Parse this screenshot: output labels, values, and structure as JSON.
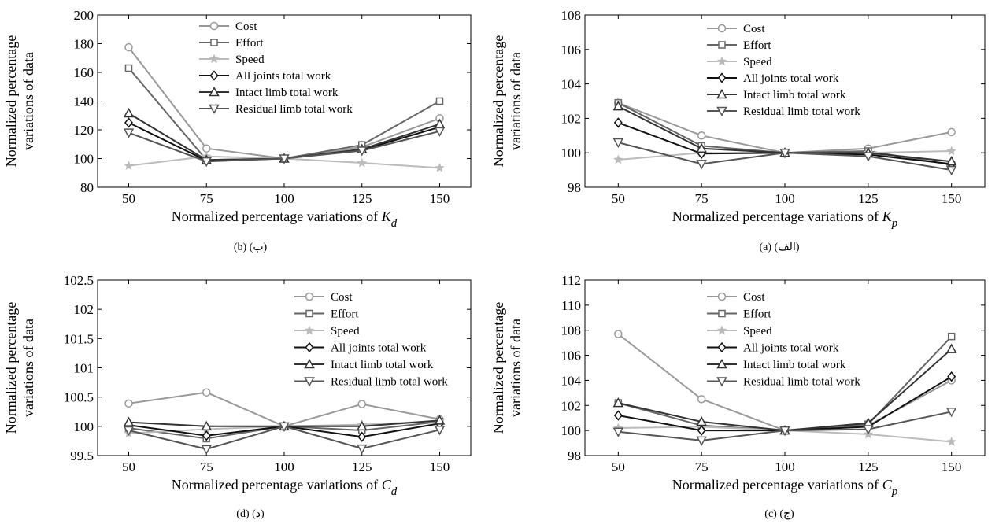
{
  "chart_data": [
    {
      "type": "line",
      "panel": "b",
      "caption": "(b)  (ب)",
      "xlabel": "Normalized percentage variations of K",
      "xlabel_sub": "d",
      "ylabel": [
        "Normalized percentage",
        "variations of data"
      ],
      "x": [
        50,
        75,
        100,
        125,
        150
      ],
      "xlim": [
        40,
        160
      ],
      "ylim": [
        80,
        200
      ],
      "yticks": [
        80,
        100,
        120,
        140,
        160,
        180,
        200
      ],
      "ytick_labels": [
        "80",
        "100",
        "120",
        "140",
        "160",
        "180",
        "200"
      ],
      "legend_position": "top-center",
      "series": [
        {
          "name": "Cost",
          "color": "#999999",
          "marker": "circle",
          "values": [
            177.5,
            107,
            100,
            108,
            128
          ]
        },
        {
          "name": "Effort",
          "color": "#666666",
          "marker": "square",
          "values": [
            163,
            99,
            100,
            109.5,
            140
          ]
        },
        {
          "name": "Speed",
          "color": "#bbbbbb",
          "marker": "star",
          "values": [
            95,
            101.5,
            100,
            97,
            93.5
          ]
        },
        {
          "name": "All joints total work",
          "color": "#111111",
          "marker": "diamond",
          "values": [
            125,
            98.5,
            100,
            106,
            122
          ]
        },
        {
          "name": "Intact limb total work",
          "color": "#333333",
          "marker": "triangle-up",
          "values": [
            131.5,
            99,
            100,
            106.5,
            124
          ]
        },
        {
          "name": "Residual limb total work",
          "color": "#555555",
          "marker": "triangle-down",
          "values": [
            118,
            98,
            100,
            105.5,
            119
          ]
        }
      ]
    },
    {
      "type": "line",
      "panel": "a",
      "caption": "(a)  (الف)",
      "xlabel": "Normalized percentage variations of K",
      "xlabel_sub": "p",
      "ylabel": [
        "Normalized percentage",
        "variations of data"
      ],
      "x": [
        50,
        75,
        100,
        125,
        150
      ],
      "xlim": [
        40,
        160
      ],
      "ylim": [
        98,
        108
      ],
      "yticks": [
        98,
        100,
        102,
        104,
        106,
        108
      ],
      "ytick_labels": [
        "98",
        "100",
        "102",
        "104",
        "106",
        "108"
      ],
      "legend_position": "top-center",
      "series": [
        {
          "name": "Cost",
          "color": "#999999",
          "marker": "circle",
          "values": [
            102.9,
            101.0,
            100,
            100.25,
            101.2
          ]
        },
        {
          "name": "Effort",
          "color": "#666666",
          "marker": "square",
          "values": [
            102.9,
            100.4,
            100,
            100.1,
            99.3
          ]
        },
        {
          "name": "Speed",
          "color": "#bbbbbb",
          "marker": "star",
          "values": [
            99.6,
            100.0,
            100,
            100.0,
            100.1
          ]
        },
        {
          "name": "All joints total work",
          "color": "#111111",
          "marker": "diamond",
          "values": [
            101.75,
            99.95,
            100,
            99.9,
            99.35
          ]
        },
        {
          "name": "Intact limb total work",
          "color": "#333333",
          "marker": "triangle-up",
          "values": [
            102.7,
            100.25,
            100,
            100.0,
            99.5
          ]
        },
        {
          "name": "Residual limb total work",
          "color": "#555555",
          "marker": "triangle-down",
          "values": [
            100.6,
            99.35,
            100,
            99.8,
            99.0
          ]
        }
      ]
    },
    {
      "type": "line",
      "panel": "d",
      "caption": "(d)  (د)",
      "xlabel": "Normalized percentage variations of C",
      "xlabel_sub": "d",
      "ylabel": [
        "Normalized percentage",
        "variations of data"
      ],
      "x": [
        50,
        75,
        100,
        125,
        150
      ],
      "xlim": [
        40,
        160
      ],
      "ylim": [
        99.5,
        102.5
      ],
      "yticks": [
        99.5,
        100,
        100.5,
        101,
        101.5,
        102,
        102.5
      ],
      "ytick_labels": [
        "99.5",
        "100",
        "100.5",
        "101",
        "101.5",
        "102",
        "102.5"
      ],
      "legend_position": "top-right",
      "series": [
        {
          "name": "Cost",
          "color": "#999999",
          "marker": "circle",
          "values": [
            100.39,
            100.58,
            100,
            100.38,
            100.12
          ]
        },
        {
          "name": "Effort",
          "color": "#666666",
          "marker": "square",
          "values": [
            99.97,
            99.79,
            100,
            99.93,
            100.08
          ]
        },
        {
          "name": "Speed",
          "color": "#bbbbbb",
          "marker": "star",
          "values": [
            99.88,
            99.95,
            100,
            100.03,
            100.09
          ]
        },
        {
          "name": "All joints total work",
          "color": "#111111",
          "marker": "diamond",
          "values": [
            100.02,
            99.84,
            100,
            99.82,
            100.05
          ]
        },
        {
          "name": "Intact limb total work",
          "color": "#333333",
          "marker": "triangle-up",
          "values": [
            100.07,
            100.0,
            100,
            100.0,
            100.1
          ]
        },
        {
          "name": "Residual limb total work",
          "color": "#555555",
          "marker": "triangle-down",
          "values": [
            99.93,
            99.61,
            100,
            99.62,
            99.94
          ]
        }
      ]
    },
    {
      "type": "line",
      "panel": "c",
      "caption": "(c)  (ج)",
      "xlabel": "Normalized percentage variations of C",
      "xlabel_sub": "p",
      "ylabel": [
        "Normalized percentage",
        "variations of data"
      ],
      "x": [
        50,
        75,
        100,
        125,
        150
      ],
      "xlim": [
        40,
        160
      ],
      "ylim": [
        98,
        112
      ],
      "yticks": [
        98,
        100,
        102,
        104,
        106,
        108,
        110,
        112
      ],
      "ytick_labels": [
        "98",
        "100",
        "102",
        "104",
        "106",
        "108",
        "110",
        "112"
      ],
      "legend_position": "top-center",
      "series": [
        {
          "name": "Cost",
          "color": "#999999",
          "marker": "circle",
          "values": [
            107.7,
            102.5,
            100,
            100.4,
            104.0
          ]
        },
        {
          "name": "Effort",
          "color": "#666666",
          "marker": "square",
          "values": [
            102.2,
            100.4,
            100,
            100.5,
            107.5
          ]
        },
        {
          "name": "Speed",
          "color": "#bbbbbb",
          "marker": "star",
          "values": [
            100.2,
            100.3,
            100,
            99.7,
            99.1
          ]
        },
        {
          "name": "All joints total work",
          "color": "#111111",
          "marker": "diamond",
          "values": [
            101.2,
            100.0,
            100,
            100.3,
            104.3
          ]
        },
        {
          "name": "Intact limb total work",
          "color": "#333333",
          "marker": "triangle-up",
          "values": [
            102.2,
            100.7,
            100,
            100.6,
            106.5
          ]
        },
        {
          "name": "Residual limb total work",
          "color": "#555555",
          "marker": "triangle-down",
          "values": [
            99.9,
            99.2,
            100,
            100.1,
            101.5
          ]
        }
      ]
    }
  ]
}
